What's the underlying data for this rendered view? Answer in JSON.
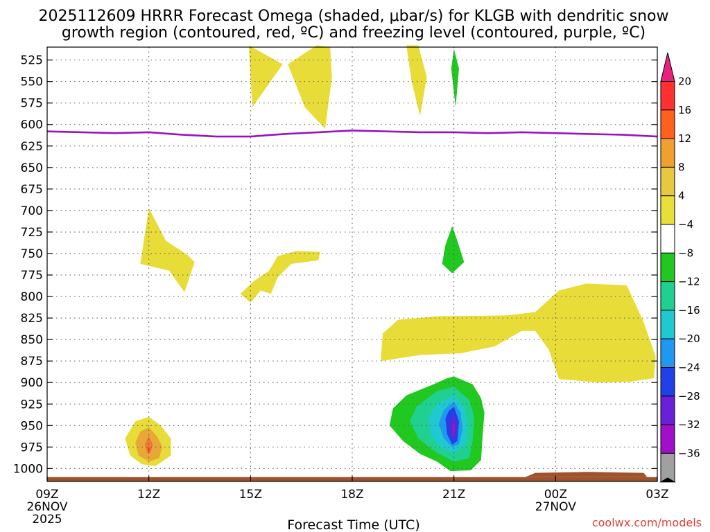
{
  "chart_data": {
    "type": "heatmap",
    "title_lines": [
      "2025112609 HRRR Forecast Omega (shaded, μbar/s) for KLGB with dendritic snow",
      "growth region (contoured, red, ºC) and freezing level (contoured, purple, ºC)"
    ],
    "xlabel": "Forecast Time (UTC)",
    "credit": "coolwx.com/models",
    "x_range_hours": [
      0,
      18
    ],
    "x_ticks": [
      {
        "hour": 0,
        "label": "09Z",
        "sub": [
          "26NOV",
          "2025"
        ]
      },
      {
        "hour": 3,
        "label": "12Z",
        "sub": []
      },
      {
        "hour": 6,
        "label": "15Z",
        "sub": []
      },
      {
        "hour": 9,
        "label": "18Z",
        "sub": []
      },
      {
        "hour": 12,
        "label": "21Z",
        "sub": []
      },
      {
        "hour": 15,
        "label": "00Z",
        "sub": [
          "27NOV"
        ]
      },
      {
        "hour": 18,
        "label": "03Z",
        "sub": []
      }
    ],
    "y_range_mb": [
      1015,
      510
    ],
    "y_ticks": [
      525,
      550,
      575,
      600,
      625,
      650,
      675,
      700,
      725,
      750,
      775,
      800,
      825,
      850,
      875,
      900,
      925,
      950,
      975,
      1000
    ],
    "colorbar": {
      "labels": [
        "20",
        "16",
        "12",
        "8",
        "4",
        "−4",
        "−8",
        "−12",
        "−16",
        "−20",
        "−24",
        "−28",
        "−32",
        "−36"
      ],
      "colors": [
        "#ff3030",
        "#ff6020",
        "#f0a030",
        "#e8c840",
        "#e8e038",
        "#ffffff",
        "#20c820",
        "#20d090",
        "#20c8d0",
        "#2098f0",
        "#2040e8",
        "#6a20d8",
        "#a010c8",
        "#a0a0a0"
      ],
      "top_arrow_color": "#e8207e",
      "bottom_arrow_color": "#000000"
    },
    "freezing_level": {
      "color": "#9a10c8",
      "points": [
        [
          0,
          608
        ],
        [
          2,
          610
        ],
        [
          3,
          609
        ],
        [
          4,
          612
        ],
        [
          5,
          614
        ],
        [
          6,
          614
        ],
        [
          7,
          611
        ],
        [
          8,
          609
        ],
        [
          9,
          607
        ],
        [
          10,
          608
        ],
        [
          11,
          609
        ],
        [
          12,
          609
        ],
        [
          13,
          610
        ],
        [
          14,
          609
        ],
        [
          15,
          610
        ],
        [
          16,
          611
        ],
        [
          17,
          612
        ],
        [
          18,
          614
        ]
      ]
    },
    "ground": {
      "color": "#a0522d",
      "top_mb": 1010
    },
    "omega_regions": [
      {
        "name": "yellow-upper-1",
        "value_range": "4 to 8",
        "color": "#e8dc38",
        "points": [
          [
            5.95,
            508
          ],
          [
            6.95,
            530
          ],
          [
            6.05,
            580
          ]
        ]
      },
      {
        "name": "yellow-upper-2",
        "value_range": "4 to 8",
        "color": "#e8dc38",
        "points": [
          [
            7.1,
            530
          ],
          [
            7.95,
            508
          ],
          [
            8.35,
            510
          ],
          [
            8.4,
            545
          ],
          [
            8.2,
            605
          ],
          [
            7.6,
            580
          ]
        ]
      },
      {
        "name": "yellow-upper-3",
        "value_range": "4 to 8",
        "color": "#e8dc38",
        "points": [
          [
            10.6,
            508
          ],
          [
            10.95,
            508
          ],
          [
            11.2,
            545
          ],
          [
            11.0,
            590
          ],
          [
            10.75,
            550
          ]
        ]
      },
      {
        "name": "green-upper",
        "value_range": "-8 to -4",
        "color": "#20c820",
        "points": [
          [
            12,
            512
          ],
          [
            12.15,
            535
          ],
          [
            12.05,
            580
          ],
          [
            11.92,
            535
          ]
        ]
      },
      {
        "name": "yellow-left-mid",
        "value_range": "4 to 8",
        "color": "#e8dc38",
        "points": [
          [
            3,
            697
          ],
          [
            3.5,
            735
          ],
          [
            4.15,
            752
          ],
          [
            4.35,
            760
          ],
          [
            4.05,
            795
          ],
          [
            3.6,
            770
          ],
          [
            2.75,
            762
          ]
        ]
      },
      {
        "name": "yellow-center-mid",
        "value_range": "4 to 8",
        "color": "#e8dc38",
        "points": [
          [
            5.7,
            797
          ],
          [
            6.1,
            782
          ],
          [
            6.55,
            770
          ],
          [
            6.8,
            753
          ],
          [
            7.35,
            747
          ],
          [
            8.05,
            748
          ],
          [
            8.0,
            758
          ],
          [
            7.2,
            762
          ],
          [
            6.8,
            778
          ],
          [
            6.6,
            797
          ],
          [
            6.3,
            793
          ],
          [
            6.0,
            807
          ]
        ]
      },
      {
        "name": "green-mid",
        "value_range": "-8 to -4",
        "color": "#20c820",
        "points": [
          [
            11.95,
            718
          ],
          [
            12.1,
            735
          ],
          [
            12.3,
            760
          ],
          [
            11.95,
            773
          ],
          [
            11.65,
            762
          ],
          [
            11.75,
            740
          ]
        ]
      },
      {
        "name": "yellow-lower-right",
        "value_range": "4 to 8",
        "color": "#e8dc38",
        "points": [
          [
            9.85,
            868
          ],
          [
            9.9,
            843
          ],
          [
            10.35,
            827
          ],
          [
            11.5,
            823
          ],
          [
            13.55,
            822
          ],
          [
            14.4,
            818
          ],
          [
            15.1,
            793
          ],
          [
            15.9,
            785
          ],
          [
            17.1,
            787
          ],
          [
            17.6,
            830
          ],
          [
            17.95,
            870
          ],
          [
            17.9,
            895
          ],
          [
            17.2,
            899
          ],
          [
            16.3,
            900
          ],
          [
            15.1,
            896
          ],
          [
            14.8,
            862
          ],
          [
            14.4,
            840
          ],
          [
            14.0,
            840
          ],
          [
            13.2,
            858
          ],
          [
            12.2,
            866
          ],
          [
            11.0,
            868
          ],
          [
            9.85,
            875
          ]
        ]
      },
      {
        "name": "omega-cell-2100-green",
        "value_range": "-8 to -4",
        "color": "#20c820",
        "points": [
          [
            12,
            893
          ],
          [
            12.55,
            902
          ],
          [
            12.8,
            918
          ],
          [
            12.9,
            935
          ],
          [
            12.85,
            960
          ],
          [
            12.8,
            990
          ],
          [
            12.5,
            1002
          ],
          [
            11.9,
            1003
          ],
          [
            11.5,
            992
          ],
          [
            11.0,
            983
          ],
          [
            10.5,
            968
          ],
          [
            10.1,
            950
          ],
          [
            10.2,
            930
          ],
          [
            10.6,
            915
          ],
          [
            11.4,
            902
          ],
          [
            11.8,
            895
          ]
        ]
      },
      {
        "name": "omega-cell-2100-teal",
        "value_range": "-12 to -8",
        "color": "#20d090",
        "points": [
          [
            12,
            905
          ],
          [
            12.45,
            920
          ],
          [
            12.6,
            940
          ],
          [
            12.55,
            968
          ],
          [
            12.45,
            988
          ],
          [
            12.0,
            992
          ],
          [
            11.5,
            982
          ],
          [
            10.95,
            965
          ],
          [
            10.7,
            945
          ],
          [
            10.9,
            928
          ],
          [
            11.5,
            910
          ]
        ]
      },
      {
        "name": "omega-cell-2100-cyan",
        "value_range": "-16 to -12",
        "color": "#20c8d0",
        "points": [
          [
            12,
            915
          ],
          [
            12.3,
            928
          ],
          [
            12.4,
            948
          ],
          [
            12.35,
            972
          ],
          [
            12.0,
            982
          ],
          [
            11.6,
            975
          ],
          [
            11.3,
            960
          ],
          [
            11.25,
            940
          ],
          [
            11.5,
            925
          ]
        ]
      },
      {
        "name": "omega-cell-2100-lightblue",
        "value_range": "-20 to -16",
        "color": "#2098f0",
        "points": [
          [
            12,
            922
          ],
          [
            12.2,
            935
          ],
          [
            12.25,
            955
          ],
          [
            12.15,
            972
          ],
          [
            11.95,
            975
          ],
          [
            11.7,
            965
          ],
          [
            11.55,
            948
          ],
          [
            11.7,
            932
          ]
        ]
      },
      {
        "name": "omega-cell-2100-blue",
        "value_range": "-24 to -20",
        "color": "#2040e8",
        "points": [
          [
            12,
            928
          ],
          [
            12.15,
            945
          ],
          [
            12.1,
            968
          ],
          [
            11.95,
            972
          ],
          [
            11.8,
            960
          ],
          [
            11.75,
            942
          ],
          [
            11.85,
            933
          ]
        ]
      },
      {
        "name": "omega-cell-2100-purple",
        "value_range": "-28 to -24",
        "color": "#6a20d8",
        "points": [
          [
            12,
            936
          ],
          [
            12.08,
            950
          ],
          [
            12.02,
            965
          ],
          [
            11.9,
            962
          ],
          [
            11.9,
            945
          ]
        ]
      },
      {
        "name": "omega-cell-2100-magenta",
        "value_range": "< -32",
        "color": "#b010b8",
        "points": [
          [
            12,
            945
          ],
          [
            12.03,
            955
          ],
          [
            11.98,
            962
          ],
          [
            11.96,
            952
          ]
        ]
      },
      {
        "name": "omega-cell-1200-yellow",
        "value_range": "4 to 8",
        "color": "#e8dc38",
        "points": [
          [
            3,
            940
          ],
          [
            3.35,
            950
          ],
          [
            3.65,
            965
          ],
          [
            3.65,
            985
          ],
          [
            3.2,
            997
          ],
          [
            2.8,
            995
          ],
          [
            2.45,
            985
          ],
          [
            2.3,
            965
          ],
          [
            2.6,
            945
          ]
        ]
      },
      {
        "name": "omega-cell-1200-orange",
        "value_range": "8 to 12",
        "color": "#e8a838",
        "points": [
          [
            3,
            952
          ],
          [
            3.25,
            963
          ],
          [
            3.4,
            975
          ],
          [
            3.3,
            988
          ],
          [
            3.0,
            992
          ],
          [
            2.7,
            985
          ],
          [
            2.6,
            970
          ],
          [
            2.75,
            957
          ]
        ]
      },
      {
        "name": "omega-cell-1200-darkorange",
        "value_range": "12 to 16",
        "color": "#f07a30",
        "points": [
          [
            3,
            962
          ],
          [
            3.12,
            972
          ],
          [
            3.05,
            982
          ],
          [
            2.95,
            982
          ],
          [
            2.88,
            972
          ]
        ]
      },
      {
        "name": "omega-cell-1200-red",
        "value_range": "16 to 20",
        "color": "#ff3030",
        "points": [
          [
            3,
            974
          ],
          [
            3.03,
            978
          ],
          [
            3.0,
            982
          ],
          [
            2.97,
            978
          ]
        ]
      },
      {
        "name": "ground-bump",
        "value_range": "terrain",
        "color": "#a0522d",
        "points": [
          [
            14.1,
            1010
          ],
          [
            14.4,
            1005
          ],
          [
            16,
            1004
          ],
          [
            17.6,
            1005
          ],
          [
            17.7,
            1010
          ]
        ]
      }
    ]
  }
}
